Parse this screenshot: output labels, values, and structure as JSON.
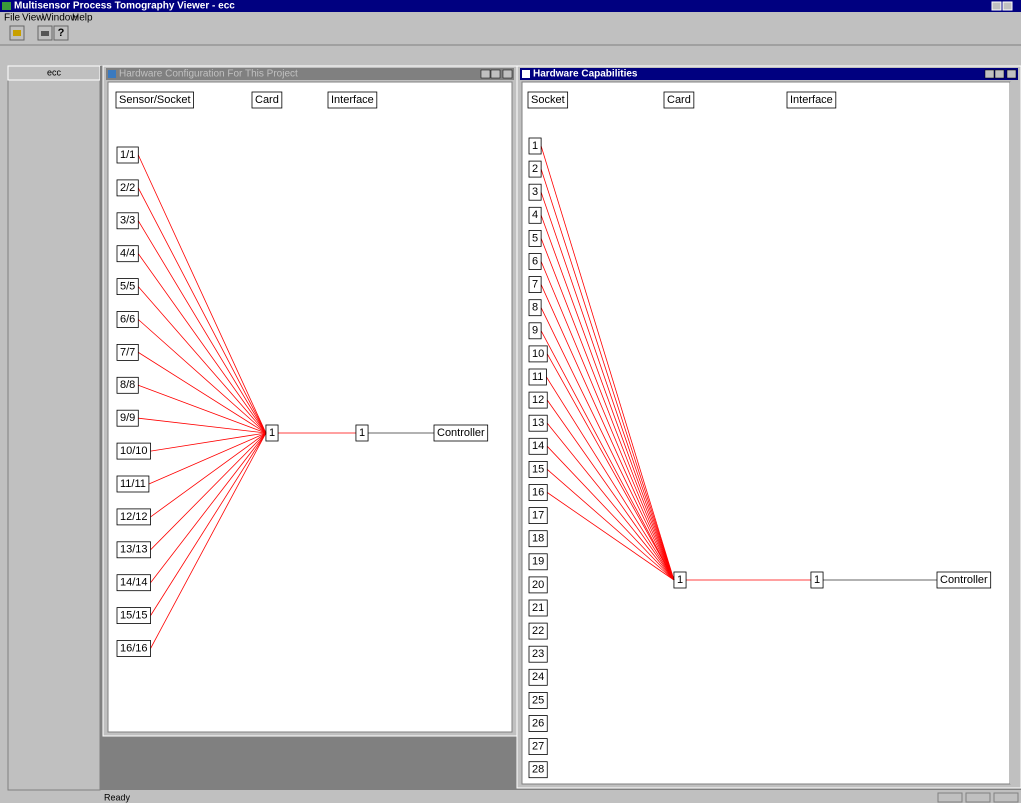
{
  "app": {
    "title": "Multisensor Process Tomography Viewer - ecc",
    "menu": [
      "File",
      "View",
      "Window",
      "Help"
    ],
    "status": "Ready"
  },
  "sidebar": {
    "title": "ecc"
  },
  "config_window": {
    "title": "Hardware Configuration For This Project",
    "headers": [
      "Sensor/Socket",
      "Card",
      "Interface"
    ],
    "sockets": [
      "1/1",
      "2/2",
      "3/3",
      "4/4",
      "5/5",
      "6/6",
      "7/7",
      "8/8",
      "9/9",
      "10/10",
      "11/11",
      "12/12",
      "13/13",
      "14/14",
      "15/15",
      "16/16"
    ],
    "card": "1",
    "interface": "1",
    "controller": "Controller"
  },
  "capabilities_window": {
    "title": "Hardware Capabilities",
    "headers": [
      "Socket",
      "Card",
      "Interface"
    ],
    "sockets": [
      "1",
      "2",
      "3",
      "4",
      "5",
      "6",
      "7",
      "8",
      "9",
      "10",
      "11",
      "12",
      "13",
      "14",
      "15",
      "16",
      "17",
      "18",
      "19",
      "20",
      "21",
      "22",
      "23",
      "24",
      "25",
      "26",
      "27",
      "28"
    ],
    "card": "1",
    "interface": "1",
    "controller": "Controller"
  }
}
